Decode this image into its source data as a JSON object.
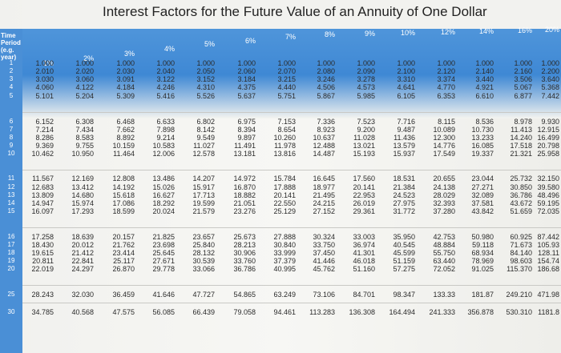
{
  "title": "Interest Factors for the Future Value of an Annuity of One Dollar",
  "corner_label": [
    "Time",
    "Period",
    "(e.g.",
    "year)"
  ],
  "rate_headers": [
    "1%",
    "2%",
    "3%",
    "4%",
    "5%",
    "6%",
    "7%",
    "8%",
    "9%",
    "10%",
    "12%",
    "14%",
    "16%",
    "20%"
  ],
  "rows": [
    {
      "period": "1",
      "values": [
        "1.000",
        "1.000",
        "1.000",
        "1.000",
        "1.000",
        "1.000",
        "1.000",
        "1.000",
        "1.000",
        "1.000",
        "1.000",
        "1.000",
        "1.000",
        "1.000"
      ]
    },
    {
      "period": "2",
      "values": [
        "2.010",
        "2.020",
        "2.030",
        "2.040",
        "2.050",
        "2.060",
        "2.070",
        "2.080",
        "2.090",
        "2.100",
        "2.120",
        "2.140",
        "2.160",
        "2.200"
      ]
    },
    {
      "period": "3",
      "values": [
        "3.030",
        "3.060",
        "3.091",
        "3.122",
        "3.152",
        "3.184",
        "3.215",
        "3.246",
        "3.278",
        "3.310",
        "3.374",
        "3.440",
        "3.506",
        "3.640"
      ]
    },
    {
      "period": "4",
      "values": [
        "4.060",
        "4.122",
        "4.184",
        "4.246",
        "4.310",
        "4.375",
        "4.440",
        "4.506",
        "4.573",
        "4.641",
        "4.770",
        "4.921",
        "5.067",
        "5.368"
      ]
    },
    {
      "period": "5",
      "values": [
        "5.101",
        "5.204",
        "5.309",
        "5.416",
        "5.526",
        "5.637",
        "5.751",
        "5.867",
        "5.985",
        "6.105",
        "6.353",
        "6.610",
        "6.877",
        "7.442"
      ]
    },
    {
      "period": "6",
      "values": [
        "6.152",
        "6.308",
        "6.468",
        "6.633",
        "6.802",
        "6.975",
        "7.153",
        "7.336",
        "7.523",
        "7.716",
        "8.115",
        "8.536",
        "8.978",
        "9.930"
      ]
    },
    {
      "period": "7",
      "values": [
        "7.214",
        "7.434",
        "7.662",
        "7.898",
        "8.142",
        "8.394",
        "8.654",
        "8.923",
        "9.200",
        "9.487",
        "10.089",
        "10.730",
        "11.413",
        "12.915"
      ]
    },
    {
      "period": "8",
      "values": [
        "8.286",
        "8.583",
        "8.892",
        "9.214",
        "9.549",
        "9.897",
        "10.260",
        "10.637",
        "11.028",
        "11.436",
        "12.300",
        "13.233",
        "14.240",
        "16.499"
      ]
    },
    {
      "period": "9",
      "values": [
        "9.369",
        "9.755",
        "10.159",
        "10.583",
        "11.027",
        "11.491",
        "11.978",
        "12.488",
        "13.021",
        "13.579",
        "14.776",
        "16.085",
        "17.518",
        "20.798"
      ]
    },
    {
      "period": "10",
      "values": [
        "10.462",
        "10.950",
        "11.464",
        "12.006",
        "12.578",
        "13.181",
        "13.816",
        "14.487",
        "15.193",
        "15.937",
        "17.549",
        "19.337",
        "21.321",
        "25.958"
      ]
    },
    {
      "period": "11",
      "values": [
        "11.567",
        "12.169",
        "12.808",
        "13.486",
        "14.207",
        "14.972",
        "15.784",
        "16.645",
        "17.560",
        "18.531",
        "20.655",
        "23.044",
        "25.732",
        "32.150"
      ]
    },
    {
      "period": "12",
      "values": [
        "12.683",
        "13.412",
        "14.192",
        "15.026",
        "15.917",
        "16.870",
        "17.888",
        "18.977",
        "20.141",
        "21.384",
        "24.138",
        "27.271",
        "30.850",
        "39.580"
      ]
    },
    {
      "period": "13",
      "values": [
        "13.809",
        "14.680",
        "15.618",
        "16.627",
        "17.713",
        "18.882",
        "20.141",
        "21.495",
        "22.953",
        "24.523",
        "28.029",
        "32.089",
        "36.786",
        "48.496"
      ]
    },
    {
      "period": "14",
      "values": [
        "14.947",
        "15.974",
        "17.086",
        "18.292",
        "19.599",
        "21.051",
        "22.550",
        "24.215",
        "26.019",
        "27.975",
        "32.393",
        "37.581",
        "43.672",
        "59.195"
      ]
    },
    {
      "period": "15",
      "values": [
        "16.097",
        "17.293",
        "18.599",
        "20.024",
        "21.579",
        "23.276",
        "25.129",
        "27.152",
        "29.361",
        "31.772",
        "37.280",
        "43.842",
        "51.659",
        "72.035"
      ]
    },
    {
      "period": "16",
      "values": [
        "17.258",
        "18.639",
        "20.157",
        "21.825",
        "23.657",
        "25.673",
        "27.888",
        "30.324",
        "33.003",
        "35.950",
        "42.753",
        "50.980",
        "60.925",
        "87.442"
      ]
    },
    {
      "period": "17",
      "values": [
        "18.430",
        "20.012",
        "21.762",
        "23.698",
        "25.840",
        "28.213",
        "30.840",
        "33.750",
        "36.974",
        "40.545",
        "48.884",
        "59.118",
        "71.673",
        "105.93"
      ]
    },
    {
      "period": "18",
      "values": [
        "19.615",
        "21.412",
        "23.414",
        "25.645",
        "28.132",
        "30.906",
        "33.999",
        "37.450",
        "41.301",
        "45.599",
        "55.750",
        "68.934",
        "84.140",
        "128.11"
      ]
    },
    {
      "period": "19",
      "values": [
        "20.811",
        "22.841",
        "25.117",
        "27.671",
        "30.539",
        "33.760",
        "37.379",
        "41.446",
        "46.018",
        "51.159",
        "63.440",
        "78.969",
        "98.603",
        "154.74"
      ]
    },
    {
      "period": "20",
      "values": [
        "22.019",
        "24.297",
        "26.870",
        "29.778",
        "33.066",
        "36.786",
        "40.995",
        "45.762",
        "51.160",
        "57.275",
        "72.052",
        "91.025",
        "115.370",
        "186.68"
      ]
    },
    {
      "period": "25",
      "values": [
        "28.243",
        "32.030",
        "36.459",
        "41.646",
        "47.727",
        "54.865",
        "63.249",
        "73.106",
        "84.701",
        "98.347",
        "133.33",
        "181.87",
        "249.210",
        "471.98"
      ]
    },
    {
      "period": "30",
      "values": [
        "34.785",
        "40.568",
        "47.575",
        "56.085",
        "66.439",
        "79.058",
        "94.461",
        "113.283",
        "136.308",
        "164.494",
        "241.333",
        "356.878",
        "530.310",
        "1181.8"
      ]
    }
  ]
}
